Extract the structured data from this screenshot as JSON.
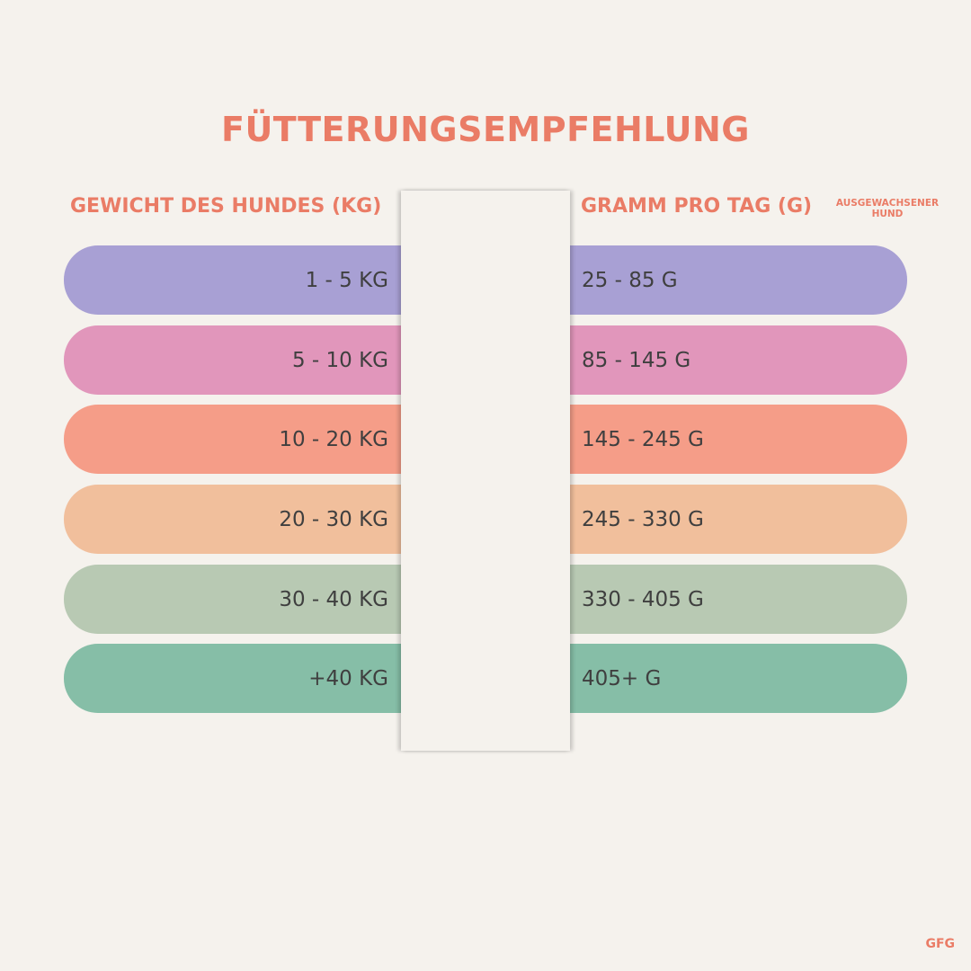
{
  "title": "FÜTTERUNGSEMPFEHLUNG",
  "headers": {
    "weight": "GEWICHT DES HUNDES (KG)",
    "grams": "GRAMM PRO TAG (G)",
    "note_line1": "AUSGEWACHSENER",
    "note_line2": "HUND"
  },
  "rows": [
    {
      "weight": "1 - 5 KG",
      "grams": "25 - 85 G",
      "color": "#a8a0d4"
    },
    {
      "weight": "5 - 10 KG",
      "grams": "85 - 145 G",
      "color": "#e196bb"
    },
    {
      "weight": "10 - 20 KG",
      "grams": "145 - 245 G",
      "color": "#f59d88"
    },
    {
      "weight": "20 - 30 KG",
      "grams": "245 - 330 G",
      "color": "#f1bf9c"
    },
    {
      "weight": "30 - 40 KG",
      "grams": "330 - 405 G",
      "color": "#b8c9b3"
    },
    {
      "weight": "+40 KG",
      "grams": "405+ G",
      "color": "#86bea7"
    }
  ],
  "logo": "GFG"
}
